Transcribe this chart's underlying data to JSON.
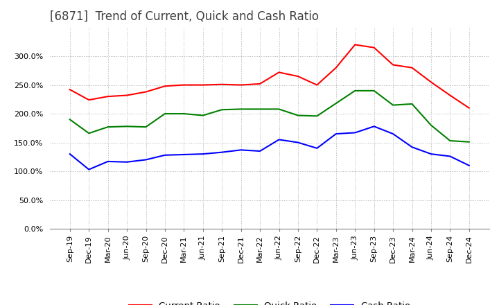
{
  "title": "[6871]  Trend of Current, Quick and Cash Ratio",
  "x_labels": [
    "Sep-19",
    "Dec-19",
    "Mar-20",
    "Jun-20",
    "Sep-20",
    "Dec-20",
    "Mar-21",
    "Jun-21",
    "Sep-21",
    "Dec-21",
    "Mar-22",
    "Jun-22",
    "Sep-22",
    "Dec-22",
    "Mar-23",
    "Jun-23",
    "Sep-23",
    "Dec-23",
    "Mar-24",
    "Jun-24",
    "Sep-24",
    "Dec-24"
  ],
  "current_ratio": [
    242,
    224,
    230,
    232,
    238,
    248,
    250,
    250,
    251,
    250,
    252,
    272,
    265,
    250,
    280,
    320,
    315,
    285,
    280,
    255,
    232,
    210
  ],
  "quick_ratio": [
    190,
    166,
    177,
    178,
    177,
    200,
    200,
    197,
    207,
    208,
    208,
    208,
    197,
    196,
    218,
    240,
    240,
    215,
    217,
    180,
    153,
    151
  ],
  "cash_ratio": [
    130,
    103,
    117,
    116,
    120,
    128,
    129,
    130,
    133,
    137,
    135,
    155,
    150,
    140,
    165,
    167,
    178,
    165,
    142,
    130,
    126,
    110
  ],
  "ylim": [
    0,
    350
  ],
  "yticks": [
    0,
    50,
    100,
    150,
    200,
    250,
    300
  ],
  "current_color": "#ff0000",
  "quick_color": "#008000",
  "cash_color": "#0000ff",
  "background_color": "#ffffff",
  "grid_color": "#b0b0b0",
  "title_fontsize": 12,
  "tick_fontsize": 8,
  "legend_fontsize": 9.5
}
